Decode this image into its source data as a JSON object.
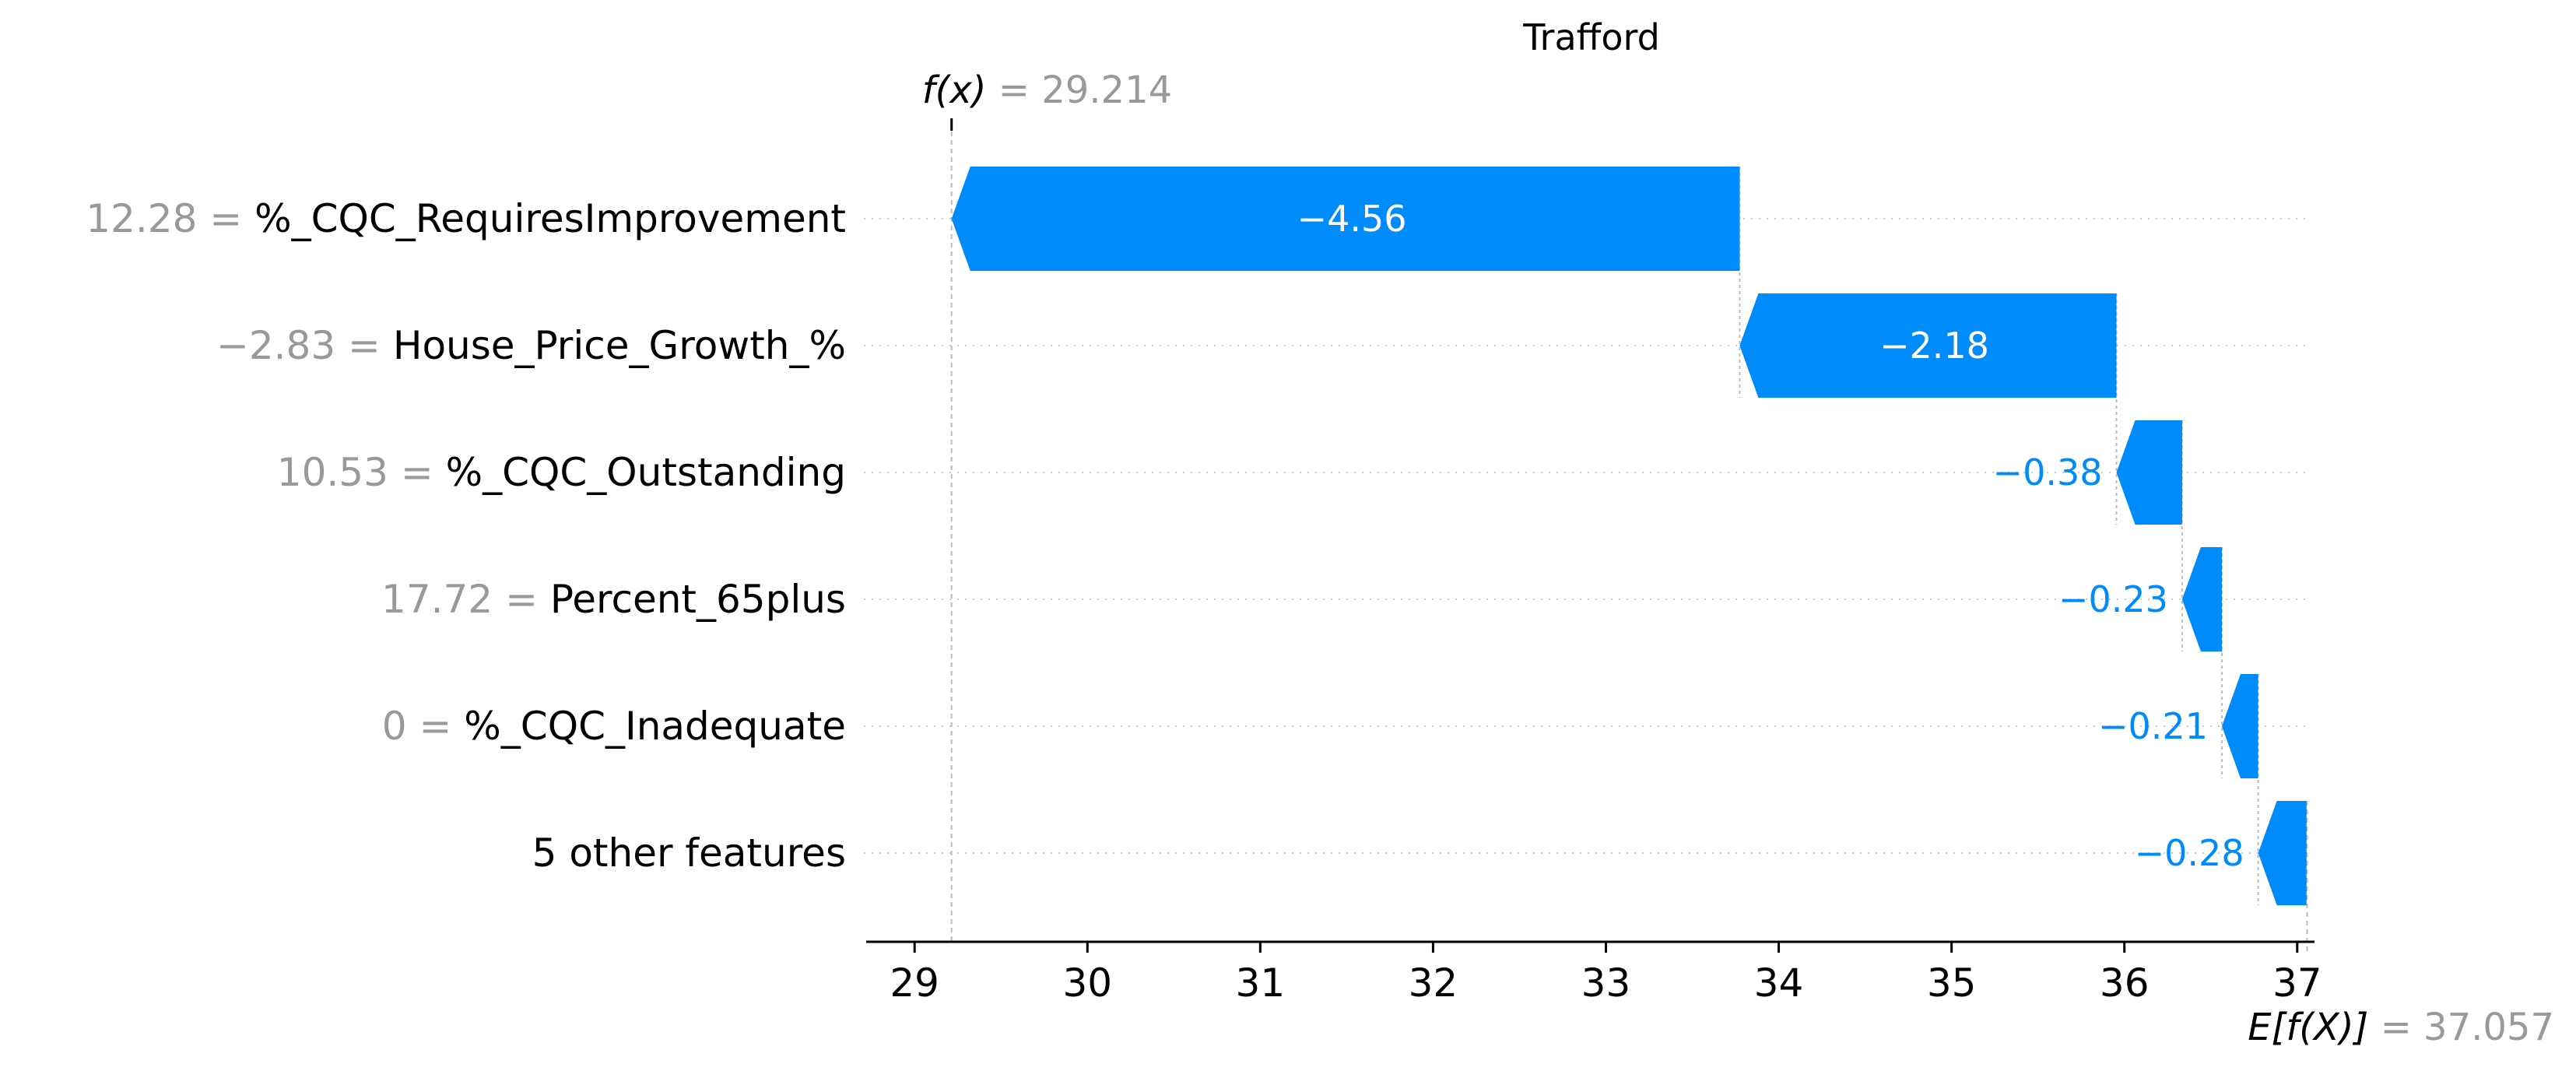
{
  "chart_data": {
    "type": "bar",
    "title": "Trafford",
    "orientation": "horizontal-waterfall",
    "base_value_label": "E[f(X)]",
    "base_value": 37.057,
    "base_value_text": "= 37.057",
    "output_value_label": "f(x)",
    "output_value": 29.214,
    "output_value_text": "= 29.214",
    "features": [
      {
        "value_text": "12.28",
        "name": "%_CQC_RequiresImprovement",
        "contribution": -4.56,
        "label": "−4.56"
      },
      {
        "value_text": "−2.83",
        "name": "House_Price_Growth_%",
        "contribution": -2.18,
        "label": "−2.18"
      },
      {
        "value_text": "10.53",
        "name": "%_CQC_Outstanding",
        "contribution": -0.38,
        "label": "−0.38"
      },
      {
        "value_text": "17.72",
        "name": "Percent_65plus",
        "contribution": -0.23,
        "label": "−0.23"
      },
      {
        "value_text": "0",
        "name": "%_CQC_Inadequate",
        "contribution": -0.21,
        "label": "−0.21"
      },
      {
        "value_text": "",
        "name": "5 other features",
        "contribution": -0.28,
        "label": "−0.28"
      }
    ],
    "xticks": [
      29,
      30,
      31,
      32,
      33,
      34,
      35,
      36,
      37
    ],
    "xlim": [
      28.72,
      37.1
    ],
    "grid": "dotted horizontal row lines",
    "colors": {
      "negative": "#008bfb",
      "muted_text": "#999999",
      "axis": "#000000",
      "guide": "#bbbbbb"
    }
  }
}
